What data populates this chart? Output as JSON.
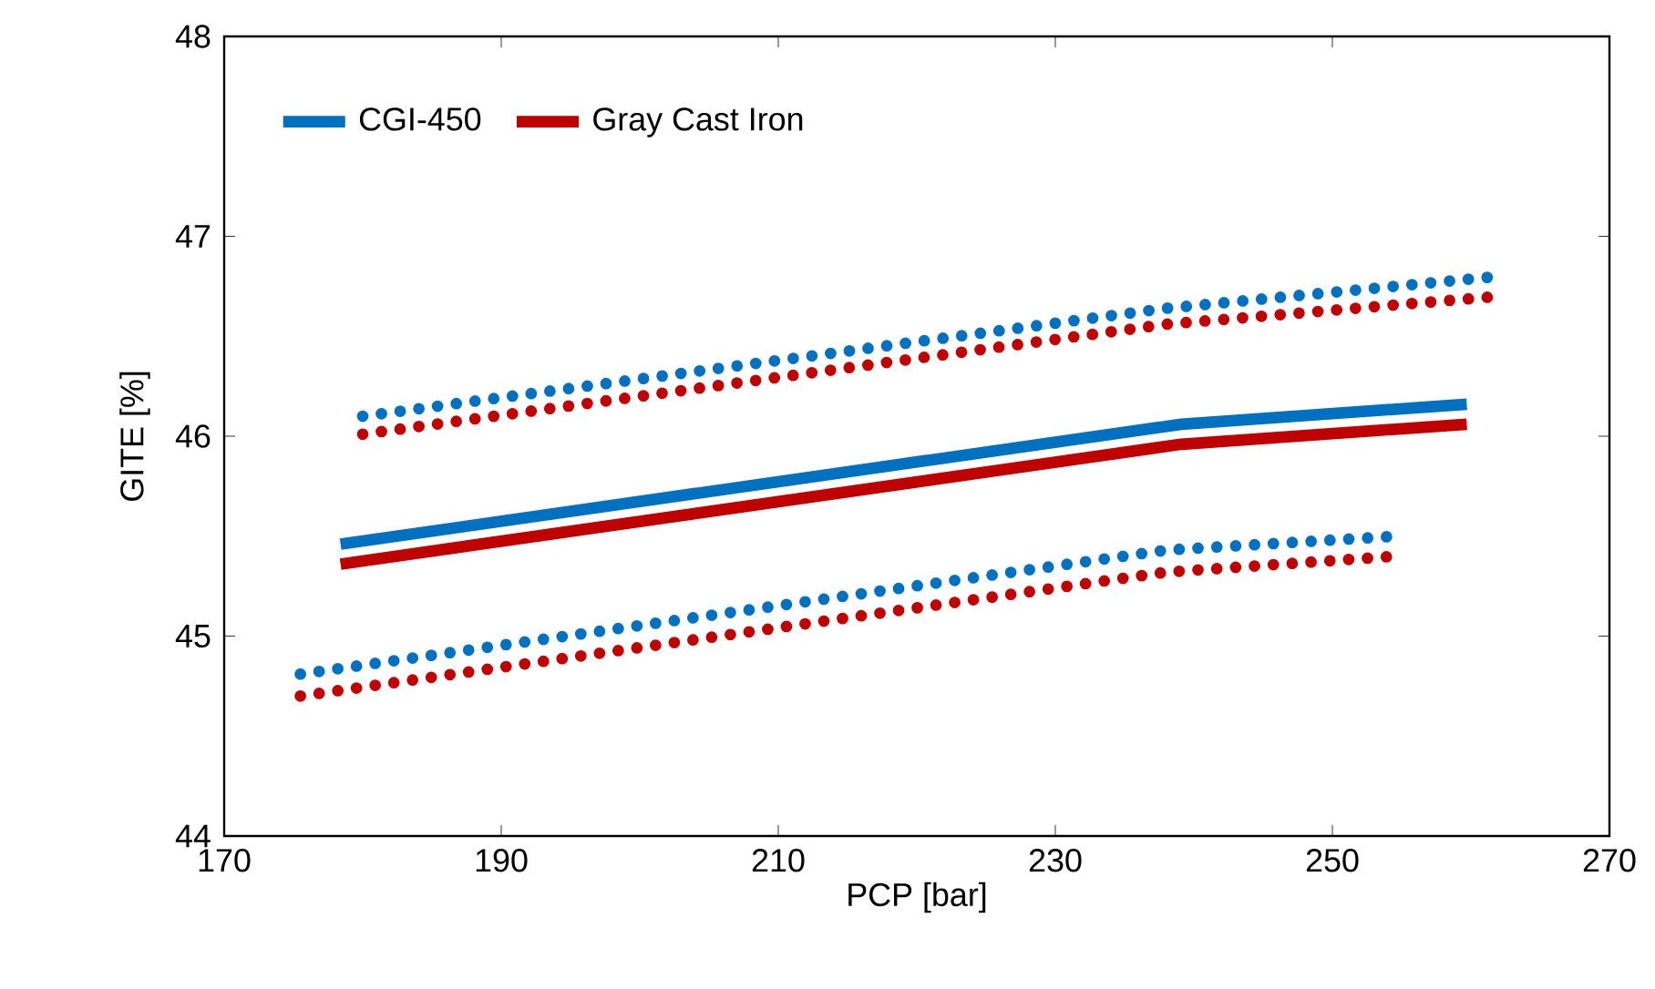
{
  "chart_data": {
    "type": "line",
    "xlabel": "PCP [bar]",
    "ylabel": "GITE [%]",
    "xlim": [
      170,
      270
    ],
    "ylim": [
      44,
      48
    ],
    "xticks": [
      170,
      190,
      210,
      230,
      250,
      270
    ],
    "yticks": [
      44,
      45,
      46,
      47,
      48
    ],
    "grid": false,
    "legend": "top left",
    "marker": "none",
    "series": [
      {
        "name": "CGI-450",
        "color": "#0070c0",
        "line_style": "solid",
        "x": [
          178.4,
          239.1,
          259.7
        ],
        "values": [
          45.46,
          46.06,
          46.16
        ]
      },
      {
        "name": "Gray Cast Iron",
        "color": "#c00000",
        "line_style": "solid",
        "x": [
          178.4,
          239.1,
          259.7
        ],
        "values": [
          45.36,
          45.96,
          46.06
        ]
      },
      {
        "color": "#0070c0",
        "line_style": "dotted",
        "x": [
          180.0,
          238.0,
          262.0
        ],
        "values": [
          46.1,
          46.64,
          46.8
        ]
      },
      {
        "color": "#c00000",
        "line_style": "dotted",
        "x": [
          180.0,
          238.0,
          262.0
        ],
        "values": [
          46.01,
          46.56,
          46.7
        ]
      },
      {
        "color": "#0070c0",
        "line_style": "dotted",
        "x": [
          175.5,
          238.0,
          254.6
        ],
        "values": [
          44.81,
          45.43,
          45.5
        ]
      },
      {
        "color": "#c00000",
        "line_style": "dotted",
        "x": [
          175.5,
          238.0,
          254.6
        ],
        "values": [
          44.7,
          45.32,
          45.4
        ]
      }
    ]
  }
}
